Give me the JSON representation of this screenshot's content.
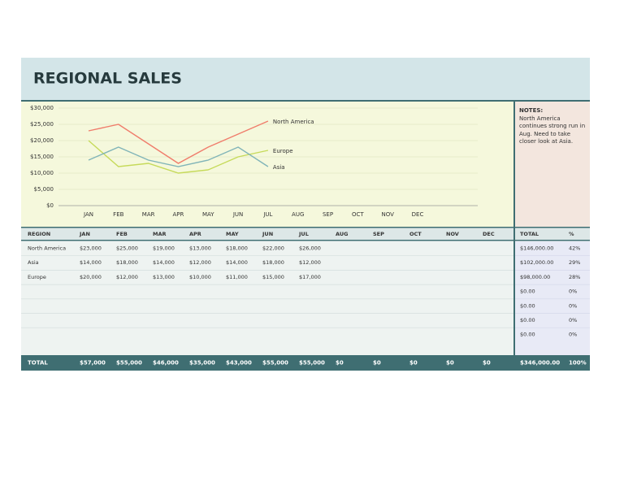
{
  "title": "REGIONAL SALES",
  "chart_data": {
    "type": "line",
    "categories": [
      "JAN",
      "FEB",
      "MAR",
      "APR",
      "MAY",
      "JUN",
      "JUL",
      "AUG",
      "SEP",
      "OCT",
      "NOV",
      "DEC"
    ],
    "series": [
      {
        "name": "North America",
        "color": "#f07d6c",
        "values": [
          23000,
          25000,
          19000,
          13000,
          18000,
          22000,
          26000,
          null,
          null,
          null,
          null,
          null
        ]
      },
      {
        "name": "Europe",
        "color": "#c6da5a",
        "values": [
          20000,
          12000,
          13000,
          10000,
          11000,
          15000,
          17000,
          null,
          null,
          null,
          null,
          null
        ]
      },
      {
        "name": "Asia",
        "color": "#80b4b8",
        "values": [
          14000,
          18000,
          14000,
          12000,
          14000,
          18000,
          12000,
          null,
          null,
          null,
          null,
          null
        ]
      }
    ],
    "ylim": [
      0,
      30000
    ],
    "yticks": [
      {
        "value": 0,
        "label": "$0"
      },
      {
        "value": 5000,
        "label": "$5,000"
      },
      {
        "value": 10000,
        "label": "$10,000"
      },
      {
        "value": 15000,
        "label": "$15,000"
      },
      {
        "value": 20000,
        "label": "$20,000"
      },
      {
        "value": 25000,
        "label": "$25,000"
      },
      {
        "value": 30000,
        "label": "$30,000"
      }
    ],
    "grid": true
  },
  "notes": {
    "label": "NOTES:",
    "text": "North America continues strong run in Aug. Need to take closer look at Asia."
  },
  "table": {
    "header": [
      "REGION",
      "JAN",
      "FEB",
      "MAR",
      "APR",
      "MAY",
      "JUN",
      "JUL",
      "AUG",
      "SEP",
      "OCT",
      "NOV",
      "DEC",
      "TOTAL",
      "%"
    ],
    "rows": [
      [
        "North America",
        "$23,000",
        "$25,000",
        "$19,000",
        "$13,000",
        "$18,000",
        "$22,000",
        "$26,000",
        null,
        null,
        null,
        null,
        null,
        "$146,000.00",
        "42%"
      ],
      [
        "Asia",
        "$14,000",
        "$18,000",
        "$14,000",
        "$12,000",
        "$14,000",
        "$18,000",
        "$12,000",
        null,
        null,
        null,
        null,
        null,
        "$102,000.00",
        "29%"
      ],
      [
        "Europe",
        "$20,000",
        "$12,000",
        "$13,000",
        "$10,000",
        "$11,000",
        "$15,000",
        "$17,000",
        null,
        null,
        null,
        null,
        null,
        "$98,000.00",
        "28%"
      ],
      [
        null,
        null,
        null,
        null,
        null,
        null,
        null,
        null,
        null,
        null,
        null,
        null,
        null,
        "$0.00",
        "0%"
      ],
      [
        null,
        null,
        null,
        null,
        null,
        null,
        null,
        null,
        null,
        null,
        null,
        null,
        null,
        "$0.00",
        "0%"
      ],
      [
        null,
        null,
        null,
        null,
        null,
        null,
        null,
        null,
        null,
        null,
        null,
        null,
        null,
        "$0.00",
        "0%"
      ],
      [
        null,
        null,
        null,
        null,
        null,
        null,
        null,
        null,
        null,
        null,
        null,
        null,
        null,
        "$0.00",
        "0%"
      ]
    ],
    "total": [
      "TOTAL",
      "$57,000",
      "$55,000",
      "$46,000",
      "$35,000",
      "$43,000",
      "$55,000",
      "$55,000",
      "$0",
      "$0",
      "$0",
      "$0",
      "$0",
      "$346,000.00",
      "100%"
    ]
  }
}
